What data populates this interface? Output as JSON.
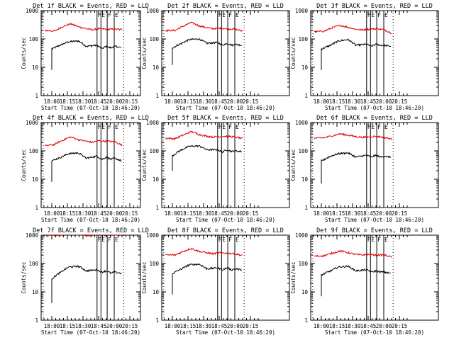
{
  "figure": {
    "colors": {
      "events": "#000000",
      "lld": "#e00000",
      "axes": "#000000",
      "background": "#ffffff"
    },
    "grid": false,
    "y_scale": "log"
  },
  "chart_data": [
    {
      "type": "line",
      "detector": 1,
      "title": "Det 1f BLACK = Events, RED = LLD",
      "xlabel": "Start Time (07-Oct-10 18:46:20)",
      "ylabel": "Counts/sec",
      "x_tick_labels": [
        "18:00",
        "18:15",
        "18:30",
        "18:45",
        "20:00",
        "20:15"
      ],
      "y_tick_labels": [
        "1",
        "10",
        "100",
        "1000"
      ],
      "ylim": [
        1,
        1000
      ],
      "y_scale": "log",
      "markers": [
        {
          "label": "F",
          "tick_pos": 2.9
        },
        {
          "label": "E",
          "tick_pos": 3.15
        },
        {
          "label": "F",
          "tick_pos": 3.55
        },
        {
          "label": "E",
          "tick_pos": 4.0
        }
      ],
      "series": [
        {
          "name": "Events",
          "color": "#000000",
          "t0": 0,
          "t1": 4.45,
          "start_value": 8,
          "x": [
            0.05,
            0.6,
            1.1,
            1.7,
            2.2,
            2.9,
            3.2,
            3.5,
            3.8,
            4.0,
            4.45
          ],
          "y": [
            45,
            62,
            80,
            85,
            55,
            60,
            45,
            55,
            48,
            55,
            50
          ]
        },
        {
          "name": "LLD",
          "color": "#e00000",
          "t0": -0.45,
          "t1": 4.5,
          "start_value": null,
          "x": [
            -0.45,
            0.2,
            0.8,
            1.2,
            1.7,
            2.2,
            2.6,
            3.0,
            3.5,
            4.0,
            4.5
          ],
          "y": [
            200,
            190,
            290,
            340,
            270,
            230,
            210,
            230,
            220,
            220,
            215
          ]
        }
      ]
    },
    {
      "type": "line",
      "detector": 2,
      "title": "Det 2f BLACK = Events, RED = LLD",
      "xlabel": "Start Time (07-Oct-10 18:46:20)",
      "ylabel": "Counts/sec",
      "x_tick_labels": [
        "18:00",
        "18:15",
        "18:30",
        "18:45",
        "20:00",
        "20:15"
      ],
      "y_tick_labels": [
        "1",
        "10",
        "100",
        "1000"
      ],
      "ylim": [
        1,
        1000
      ],
      "y_scale": "log",
      "markers": [
        {
          "label": "F",
          "tick_pos": 2.9
        },
        {
          "label": "E",
          "tick_pos": 3.15
        },
        {
          "label": "F",
          "tick_pos": 3.55
        },
        {
          "label": "E",
          "tick_pos": 4.0
        }
      ],
      "series": [
        {
          "name": "Events",
          "color": "#000000",
          "t0": 0,
          "t1": 4.45,
          "start_value": 12,
          "x": [
            0.05,
            0.6,
            1.1,
            1.7,
            2.2,
            2.9,
            3.2,
            3.5,
            3.8,
            4.0,
            4.45
          ],
          "y": [
            50,
            70,
            95,
            100,
            70,
            75,
            60,
            70,
            60,
            65,
            60
          ]
        },
        {
          "name": "LLD",
          "color": "#e00000",
          "t0": -0.45,
          "t1": 4.5,
          "start_value": null,
          "x": [
            -0.45,
            0.2,
            0.8,
            1.2,
            1.7,
            2.2,
            2.6,
            3.0,
            3.5,
            4.0,
            4.5
          ],
          "y": [
            200,
            200,
            300,
            380,
            290,
            250,
            230,
            240,
            230,
            220,
            190
          ]
        }
      ]
    },
    {
      "type": "line",
      "detector": 3,
      "title": "Det 3f BLACK = Events, RED = LLD",
      "xlabel": "Start Time (07-Oct-10 18:46:20)",
      "ylabel": "Counts/sec",
      "x_tick_labels": [
        "18:00",
        "18:15",
        "18:30",
        "18:45",
        "20:00",
        "20:15"
      ],
      "y_tick_labels": [
        "1",
        "10",
        "100",
        "1000"
      ],
      "ylim": [
        1,
        1000
      ],
      "y_scale": "log",
      "markers": [
        {
          "label": "F",
          "tick_pos": 2.9
        },
        {
          "label": "E",
          "tick_pos": 3.15
        },
        {
          "label": "F",
          "tick_pos": 3.55
        },
        {
          "label": "E",
          "tick_pos": 4.0
        }
      ],
      "series": [
        {
          "name": "Events",
          "color": "#000000",
          "t0": 0,
          "t1": 4.45,
          "start_value": 8,
          "x": [
            0.05,
            0.6,
            1.1,
            1.7,
            2.2,
            2.9,
            3.2,
            3.5,
            3.8,
            4.0,
            4.45
          ],
          "y": [
            45,
            60,
            85,
            95,
            60,
            65,
            55,
            65,
            60,
            60,
            55
          ]
        },
        {
          "name": "LLD",
          "color": "#e00000",
          "t0": -0.45,
          "t1": 4.5,
          "start_value": null,
          "x": [
            -0.45,
            0.2,
            0.8,
            1.2,
            1.7,
            2.2,
            2.6,
            3.0,
            3.5,
            4.0,
            4.5
          ],
          "y": [
            180,
            190,
            260,
            300,
            260,
            220,
            210,
            220,
            230,
            215,
            160
          ]
        }
      ]
    },
    {
      "type": "line",
      "detector": 4,
      "title": "Det 4f BLACK = Events, RED = LLD",
      "xlabel": "Start Time (07-Oct-10 18:46:20)",
      "ylabel": "Counts/sec",
      "x_tick_labels": [
        "18:00",
        "18:15",
        "18:30",
        "18:45",
        "20:00",
        "20:15"
      ],
      "y_tick_labels": [
        "1",
        "10",
        "100",
        "1000"
      ],
      "ylim": [
        1,
        1000
      ],
      "y_scale": "log",
      "markers": [
        {
          "label": "F",
          "tick_pos": 2.9
        },
        {
          "label": "E",
          "tick_pos": 3.15
        },
        {
          "label": "F",
          "tick_pos": 3.55
        },
        {
          "label": "E",
          "tick_pos": 4.0
        }
      ],
      "series": [
        {
          "name": "Events",
          "color": "#000000",
          "t0": 0,
          "t1": 4.45,
          "start_value": 8,
          "x": [
            0.05,
            0.6,
            1.1,
            1.7,
            2.2,
            2.9,
            3.2,
            3.5,
            3.8,
            4.0,
            4.45
          ],
          "y": [
            45,
            60,
            80,
            85,
            55,
            65,
            50,
            60,
            50,
            55,
            45
          ]
        },
        {
          "name": "LLD",
          "color": "#e00000",
          "t0": -0.45,
          "t1": 4.5,
          "start_value": null,
          "x": [
            -0.45,
            0.2,
            0.8,
            1.2,
            1.7,
            2.2,
            2.6,
            3.0,
            3.5,
            4.0,
            4.5
          ],
          "y": [
            150,
            170,
            250,
            310,
            250,
            220,
            200,
            230,
            220,
            210,
            160
          ]
        }
      ]
    },
    {
      "type": "line",
      "detector": 5,
      "title": "Det 5f BLACK = Events, RED = LLD",
      "xlabel": "Start Time (07-Oct-10 18:46:20)",
      "ylabel": "Counts/sec",
      "x_tick_labels": [
        "18:00",
        "18:15",
        "18:30",
        "18:45",
        "20:00",
        "20:15"
      ],
      "y_tick_labels": [
        "1",
        "10",
        "100",
        "1000"
      ],
      "ylim": [
        1,
        1000
      ],
      "y_scale": "log",
      "markers": [
        {
          "label": "F",
          "tick_pos": 2.9
        },
        {
          "label": "E",
          "tick_pos": 3.15
        },
        {
          "label": "F",
          "tick_pos": 3.55
        },
        {
          "label": "E",
          "tick_pos": 4.0
        }
      ],
      "series": [
        {
          "name": "Events",
          "color": "#000000",
          "t0": 0,
          "t1": 4.45,
          "start_value": 20,
          "x": [
            0.05,
            0.6,
            1.1,
            1.7,
            2.2,
            2.9,
            3.2,
            3.5,
            3.8,
            4.0,
            4.45
          ],
          "y": [
            70,
            110,
            145,
            150,
            110,
            110,
            90,
            110,
            95,
            100,
            95
          ]
        },
        {
          "name": "LLD",
          "color": "#e00000",
          "t0": -0.45,
          "t1": 4.5,
          "start_value": null,
          "x": [
            -0.45,
            0.2,
            0.8,
            1.2,
            1.7,
            2.2,
            2.6,
            3.0,
            3.5,
            4.0,
            4.5
          ],
          "y": [
            280,
            270,
            380,
            480,
            380,
            330,
            310,
            320,
            330,
            310,
            270
          ]
        }
      ]
    },
    {
      "type": "line",
      "detector": 6,
      "title": "Det 6f BLACK = Events, RED = LLD",
      "xlabel": "Start Time (07-Oct-10 18:46:20)",
      "ylabel": "Counts/sec",
      "x_tick_labels": [
        "18:00",
        "18:15",
        "18:30",
        "18:45",
        "20:00",
        "20:15"
      ],
      "y_tick_labels": [
        "1",
        "10",
        "100",
        "1000"
      ],
      "ylim": [
        1,
        1000
      ],
      "y_scale": "log",
      "markers": [
        {
          "label": "F",
          "tick_pos": 2.9
        },
        {
          "label": "E",
          "tick_pos": 3.15
        },
        {
          "label": "F",
          "tick_pos": 3.55
        },
        {
          "label": "E",
          "tick_pos": 4.0
        }
      ],
      "series": [
        {
          "name": "Events",
          "color": "#000000",
          "t0": 0,
          "t1": 4.45,
          "start_value": 7,
          "x": [
            0.05,
            0.6,
            1.1,
            1.7,
            2.2,
            2.9,
            3.2,
            3.5,
            3.8,
            4.0,
            4.45
          ],
          "y": [
            45,
            65,
            80,
            85,
            60,
            70,
            60,
            70,
            60,
            65,
            60
          ]
        },
        {
          "name": "LLD",
          "color": "#e00000",
          "t0": -0.45,
          "t1": 4.5,
          "start_value": null,
          "x": [
            -0.45,
            0.2,
            0.8,
            1.2,
            1.7,
            2.2,
            2.6,
            3.0,
            3.5,
            4.0,
            4.5
          ],
          "y": [
            280,
            290,
            350,
            400,
            360,
            320,
            300,
            310,
            330,
            300,
            260
          ]
        }
      ]
    },
    {
      "type": "line",
      "detector": 7,
      "title": "Det 7f BLACK = Events, RED = LLD",
      "xlabel": "Start Time (07-Oct-10 18:46:20)",
      "ylabel": "Counts/sec",
      "x_tick_labels": [
        "18:00",
        "18:15",
        "18:30",
        "18:45",
        "20:00",
        "20:15"
      ],
      "y_tick_labels": [
        "1",
        "10",
        "100",
        "1000"
      ],
      "ylim": [
        1,
        1000
      ],
      "y_scale": "log",
      "markers": [
        {
          "label": "F",
          "tick_pos": 2.9
        },
        {
          "label": "E",
          "tick_pos": 3.15
        },
        {
          "label": "F",
          "tick_pos": 3.55
        },
        {
          "label": "E",
          "tick_pos": 4.0
        }
      ],
      "series": [
        {
          "name": "Events",
          "color": "#000000",
          "t0": 0,
          "t1": 4.45,
          "start_value": 4,
          "x": [
            0.05,
            0.6,
            1.1,
            1.7,
            2.2,
            2.9,
            3.2,
            3.5,
            3.8,
            4.0,
            4.45
          ],
          "y": [
            30,
            50,
            75,
            80,
            55,
            60,
            50,
            55,
            45,
            50,
            45
          ]
        },
        {
          "name": "LLD",
          "color": "#e00000",
          "t0": -0.45,
          "t1": 4.5,
          "start_value": null,
          "x": [
            -0.45,
            0.2,
            0.8,
            1.2,
            1.7,
            2.2,
            2.6,
            3.0,
            3.5,
            4.0,
            4.5
          ],
          "y": [
            1000,
            1000,
            1050,
            1100,
            1050,
            1000,
            1000,
            1050,
            1000,
            1000,
            1000
          ]
        }
      ]
    },
    {
      "type": "line",
      "detector": 8,
      "title": "Det 8f BLACK = Events, RED = LLD",
      "xlabel": "Start Time (07-Oct-10 18:46:20)",
      "ylabel": "Counts/sec",
      "x_tick_labels": [
        "18:00",
        "18:15",
        "18:30",
        "18:45",
        "20:00",
        "20:15"
      ],
      "y_tick_labels": [
        "1",
        "10",
        "100",
        "1000"
      ],
      "ylim": [
        1,
        1000
      ],
      "y_scale": "log",
      "markers": [
        {
          "label": "F",
          "tick_pos": 2.9
        },
        {
          "label": "E",
          "tick_pos": 3.15
        },
        {
          "label": "F",
          "tick_pos": 3.55
        },
        {
          "label": "E",
          "tick_pos": 4.0
        }
      ],
      "series": [
        {
          "name": "Events",
          "color": "#000000",
          "t0": 0,
          "t1": 4.45,
          "start_value": 8,
          "x": [
            0.05,
            0.6,
            1.1,
            1.7,
            2.2,
            2.9,
            3.2,
            3.5,
            3.8,
            4.0,
            4.45
          ],
          "y": [
            45,
            65,
            90,
            95,
            65,
            70,
            60,
            70,
            60,
            65,
            60
          ]
        },
        {
          "name": "LLD",
          "color": "#e00000",
          "t0": -0.45,
          "t1": 4.5,
          "start_value": null,
          "x": [
            -0.45,
            0.2,
            0.8,
            1.2,
            1.7,
            2.2,
            2.6,
            3.0,
            3.5,
            4.0,
            4.5
          ],
          "y": [
            200,
            200,
            280,
            340,
            270,
            240,
            220,
            240,
            230,
            220,
            190
          ]
        }
      ]
    },
    {
      "type": "line",
      "detector": 9,
      "title": "Det 9f BLACK = Events, RED = LLD",
      "xlabel": "Start Time (07-Oct-10 18:46:20)",
      "ylabel": "Counts/sec",
      "x_tick_labels": [
        "18:00",
        "18:15",
        "18:30",
        "18:45",
        "20:00",
        "20:15"
      ],
      "y_tick_labels": [
        "1",
        "10",
        "100",
        "1000"
      ],
      "ylim": [
        1,
        1000
      ],
      "y_scale": "log",
      "markers": [
        {
          "label": "F",
          "tick_pos": 2.9
        },
        {
          "label": "E",
          "tick_pos": 3.15
        },
        {
          "label": "F",
          "tick_pos": 3.55
        },
        {
          "label": "E",
          "tick_pos": 4.0
        }
      ],
      "series": [
        {
          "name": "Events",
          "color": "#000000",
          "t0": 0,
          "t1": 4.45,
          "start_value": 7,
          "x": [
            0.05,
            0.6,
            1.1,
            1.7,
            2.2,
            2.9,
            3.2,
            3.5,
            3.8,
            4.0,
            4.45
          ],
          "y": [
            40,
            55,
            75,
            80,
            55,
            60,
            50,
            55,
            50,
            50,
            45
          ]
        },
        {
          "name": "LLD",
          "color": "#e00000",
          "t0": -0.45,
          "t1": 4.5,
          "start_value": null,
          "x": [
            -0.45,
            0.2,
            0.8,
            1.2,
            1.7,
            2.2,
            2.6,
            3.0,
            3.5,
            4.0,
            4.5
          ],
          "y": [
            180,
            190,
            240,
            280,
            240,
            210,
            200,
            210,
            200,
            200,
            170
          ]
        }
      ]
    }
  ]
}
